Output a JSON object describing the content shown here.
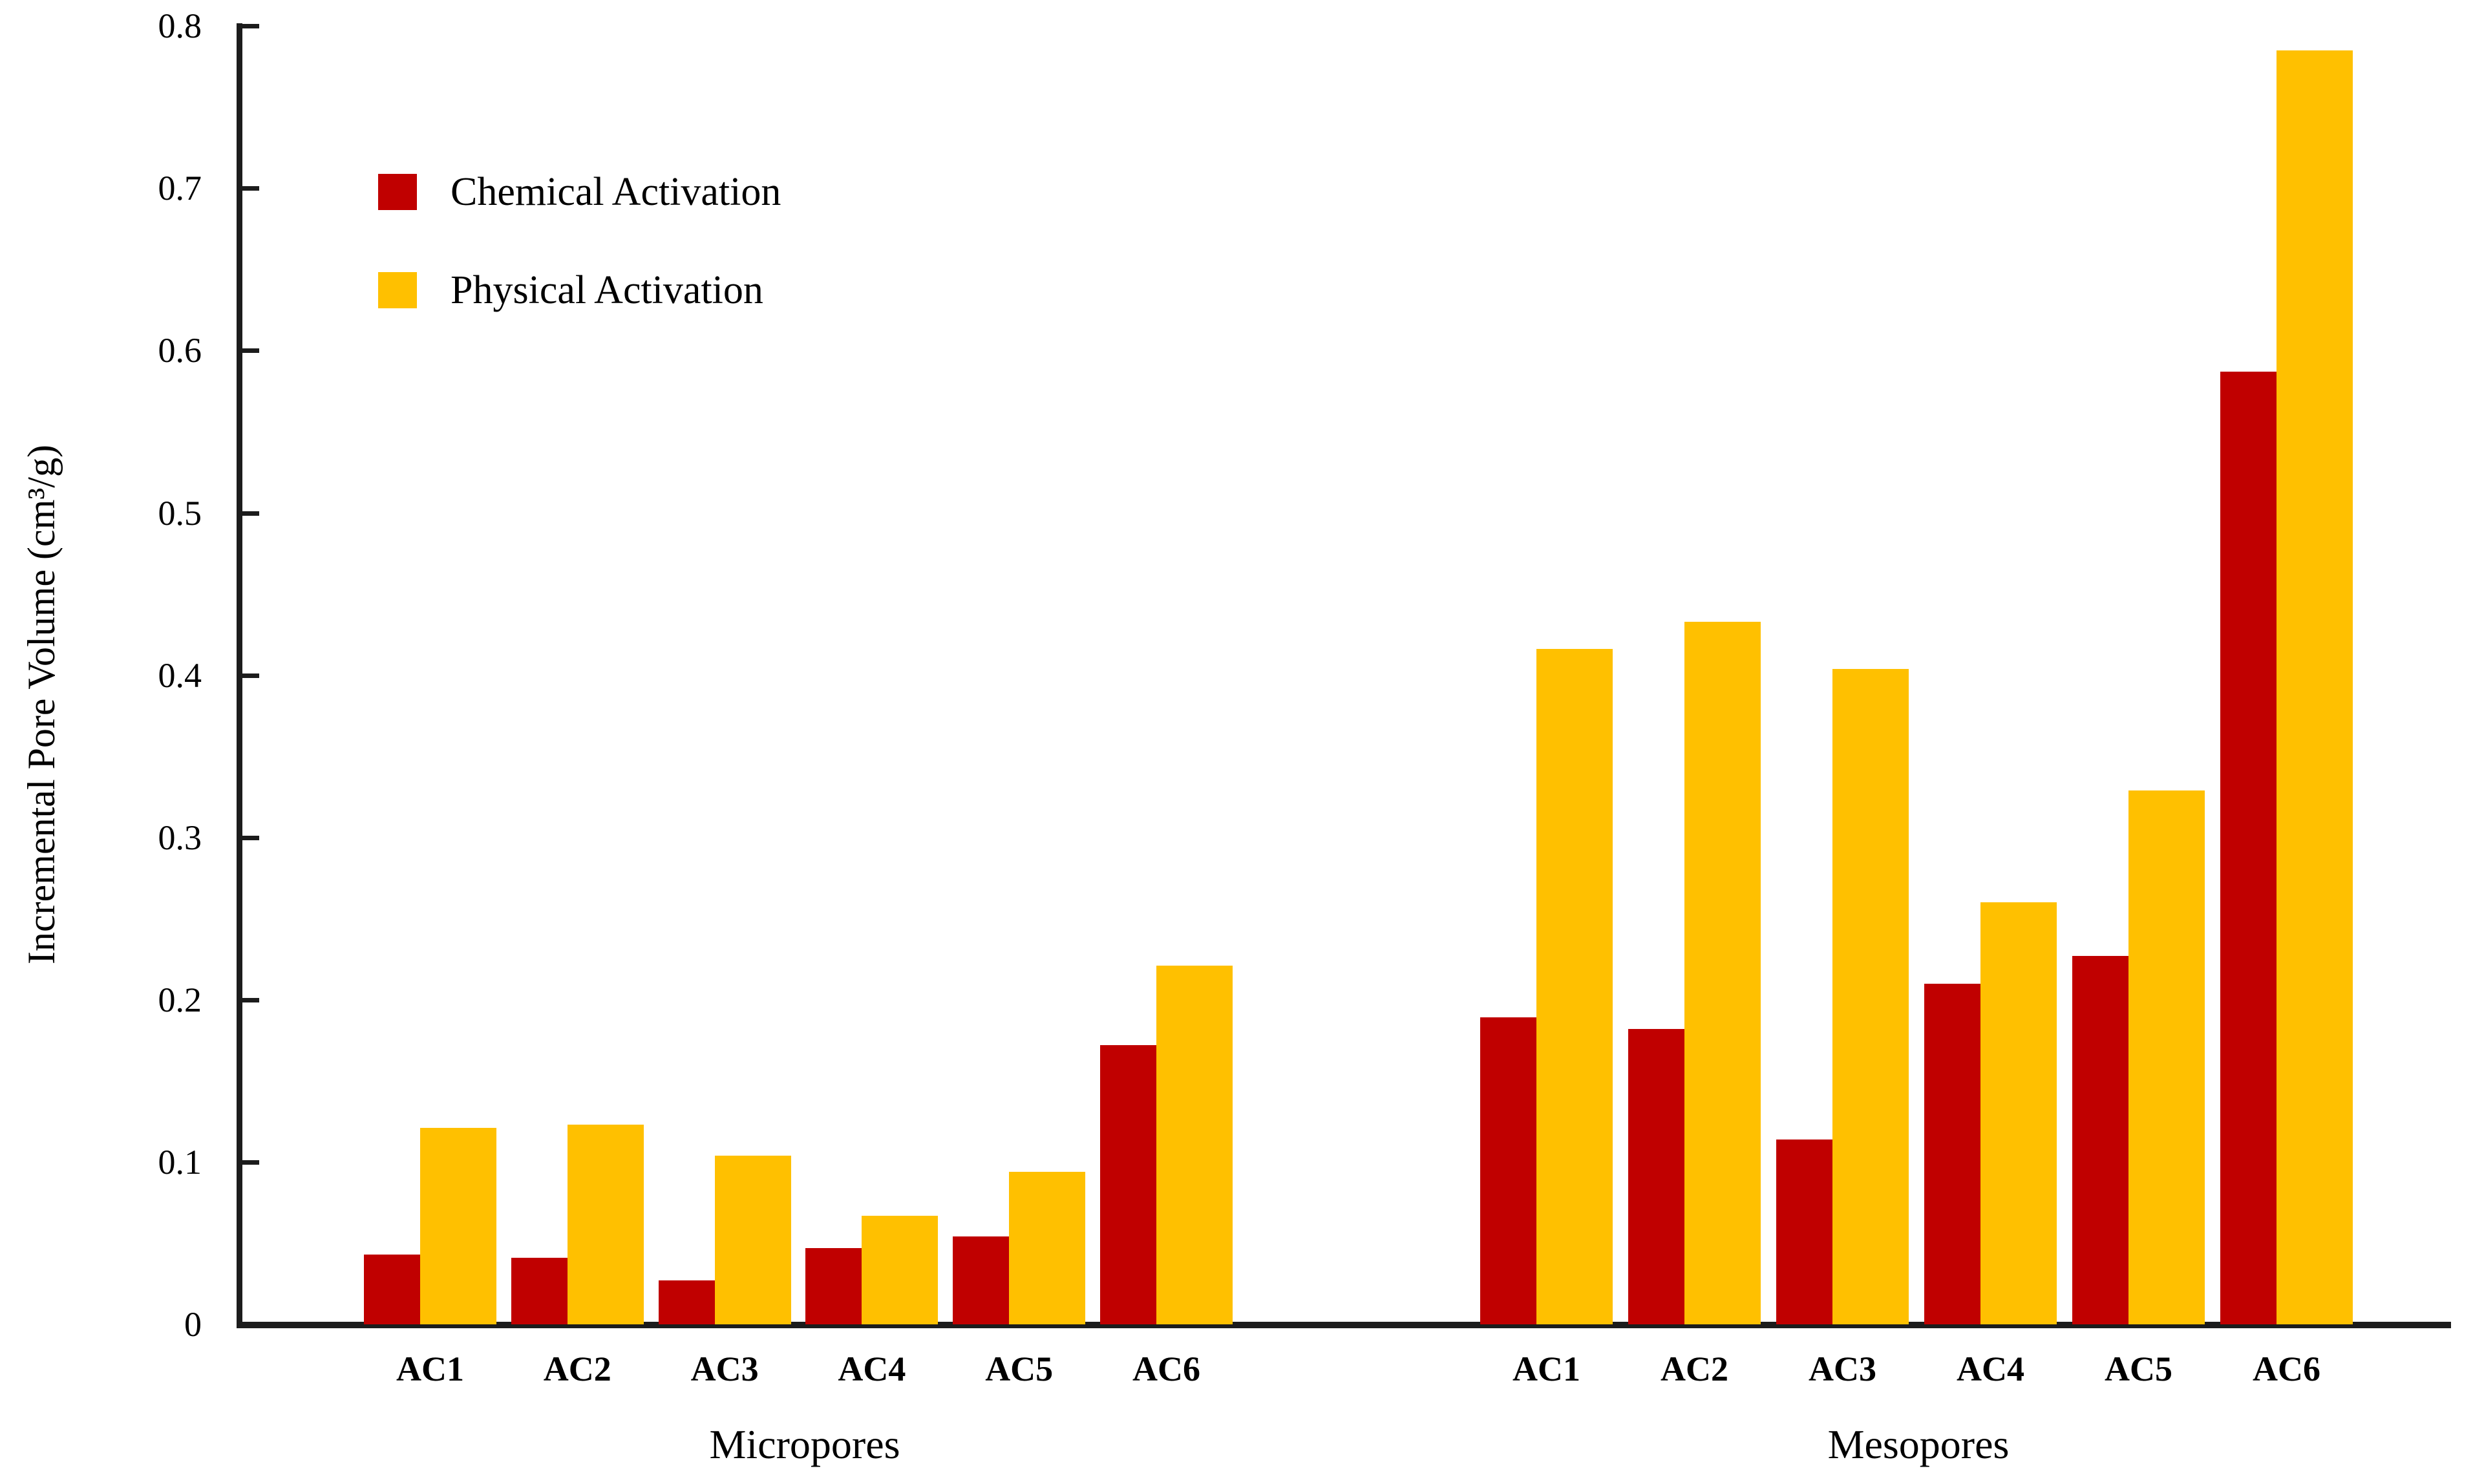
{
  "chart_data": {
    "type": "bar",
    "title": "",
    "ylabel": "Incremental Pore Volume (cm³/g)",
    "xlabel": "",
    "ylim": [
      0,
      0.8
    ],
    "grid": false,
    "legend_position": "top-left-inside",
    "yticks": [
      {
        "label": "0",
        "value": 0
      },
      {
        "label": "0.1",
        "value": 0.1
      },
      {
        "label": "0.2",
        "value": 0.2
      },
      {
        "label": "0.3",
        "value": 0.3
      },
      {
        "label": "0.4",
        "value": 0.4
      },
      {
        "label": "0.5",
        "value": 0.5
      },
      {
        "label": "0.6",
        "value": 0.6
      },
      {
        "label": "0.7",
        "value": 0.7
      },
      {
        "label": "0.8",
        "value": 0.8
      }
    ],
    "series_meta": [
      {
        "name": "Chemical Activation",
        "color": "#C00000"
      },
      {
        "name": "Physical Activation",
        "color": "#FFC000"
      }
    ],
    "groups": [
      {
        "label": "Micropores",
        "categories": [
          "AC1",
          "AC2",
          "AC3",
          "AC4",
          "AC5",
          "AC6"
        ],
        "series": [
          {
            "name": "Chemical Activation",
            "values": [
              0.043,
              0.041,
              0.027,
              0.047,
              0.054,
              0.172
            ]
          },
          {
            "name": "Physical Activation",
            "values": [
              0.121,
              0.123,
              0.104,
              0.067,
              0.094,
              0.221
            ]
          }
        ]
      },
      {
        "label": "Mesopores",
        "categories": [
          "AC1",
          "AC2",
          "AC3",
          "AC4",
          "AC5",
          "AC6"
        ],
        "series": [
          {
            "name": "Chemical Activation",
            "values": [
              0.189,
              0.182,
              0.114,
              0.21,
              0.227,
              0.587
            ]
          },
          {
            "name": "Physical Activation",
            "values": [
              0.416,
              0.433,
              0.404,
              0.26,
              0.329,
              0.785
            ]
          }
        ]
      }
    ]
  }
}
